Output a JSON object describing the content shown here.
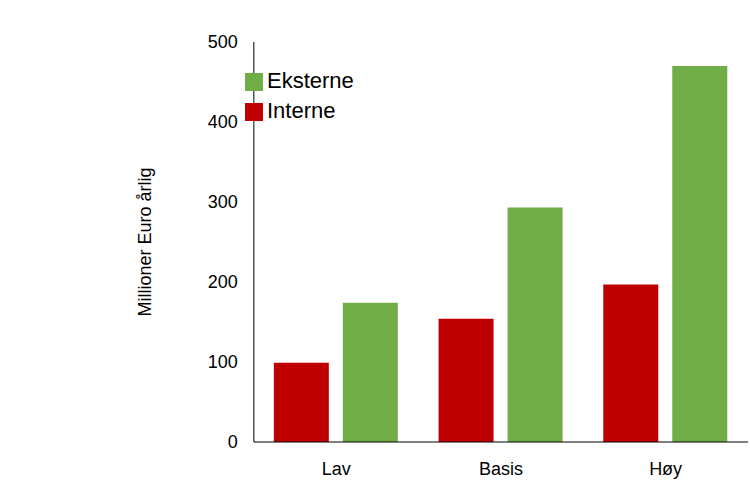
{
  "chart_data": {
    "type": "bar",
    "categories": [
      "Lav",
      "Basis",
      "Høy"
    ],
    "series": [
      {
        "name": "Interne",
        "color": "#C00000",
        "values": [
          99,
          154,
          197
        ]
      },
      {
        "name": "Eksterne",
        "color": "#70AD47",
        "values": [
          174,
          293,
          470
        ]
      }
    ],
    "y_label": "Millioner Euro årlig",
    "ylim": [
      0,
      500
    ],
    "yticks": [
      0,
      100,
      200,
      300,
      400,
      500
    ],
    "grid": false,
    "legend": "upper left"
  }
}
